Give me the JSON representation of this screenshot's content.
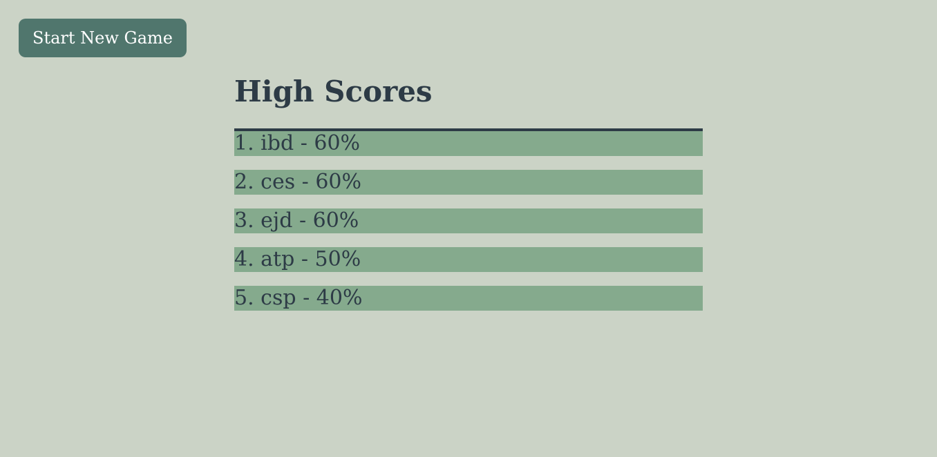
{
  "actions": {
    "start_new_game_label": "Start New Game"
  },
  "high_scores": {
    "title": "High Scores",
    "entries": [
      {
        "text": "1. ibd - 60%"
      },
      {
        "text": "2. ces - 60%"
      },
      {
        "text": "3. ejd - 60%"
      },
      {
        "text": "4. atp - 50%"
      },
      {
        "text": "5. csp - 40%"
      }
    ]
  },
  "colors": {
    "background": "#cbd3c6",
    "button": "#50766d",
    "button_text": "#ffffff",
    "title_text": "#2d3b46",
    "row_background": "#85aa8d",
    "divider": "#2d3b46"
  }
}
